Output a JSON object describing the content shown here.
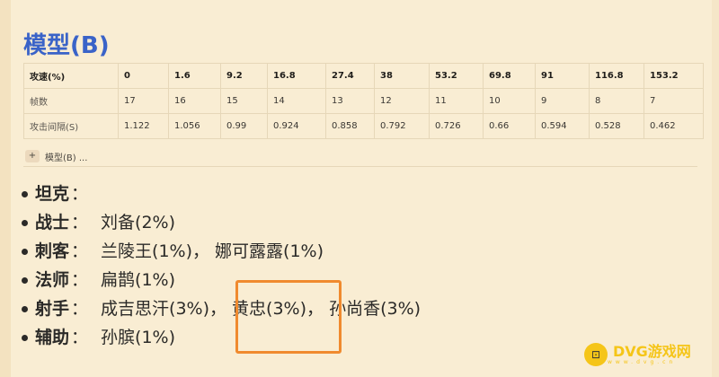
{
  "title": "模型(B)",
  "table": {
    "rows": [
      {
        "label": "攻速(%)",
        "values": [
          "0",
          "1.6",
          "9.2",
          "16.8",
          "27.4",
          "38",
          "53.2",
          "69.8",
          "91",
          "116.8",
          "153.2"
        ]
      },
      {
        "label": "帧数",
        "values": [
          "17",
          "16",
          "15",
          "14",
          "13",
          "12",
          "11",
          "10",
          "9",
          "8",
          "7"
        ]
      },
      {
        "label": "攻击间隔(S)",
        "values": [
          "1.122",
          "1.056",
          "0.99",
          "0.924",
          "0.858",
          "0.792",
          "0.726",
          "0.66",
          "0.594",
          "0.528",
          "0.462"
        ]
      }
    ]
  },
  "add_row": {
    "icon": "plus-icon",
    "label": "模型(B) ..."
  },
  "roles": [
    {
      "role": "坦克",
      "heroes": []
    },
    {
      "role": "战士",
      "heroes": [
        "刘备(2%)"
      ]
    },
    {
      "role": "刺客",
      "heroes": [
        "兰陵王(1%)",
        "娜可露露(1%)"
      ]
    },
    {
      "role": "法师",
      "heroes": [
        "扁鹊(1%)"
      ]
    },
    {
      "role": "射手",
      "heroes": [
        "成吉思汗(3%)",
        "黄忠(3%)",
        "孙尚香(3%)"
      ]
    },
    {
      "role": "辅助",
      "heroes": [
        "孙膑(1%)"
      ]
    }
  ],
  "colon": "：",
  "separator": "， ",
  "highlight_color": "#f08a2e",
  "watermark": {
    "name": "DVG游戏网",
    "url": "www.dvg.cn"
  }
}
